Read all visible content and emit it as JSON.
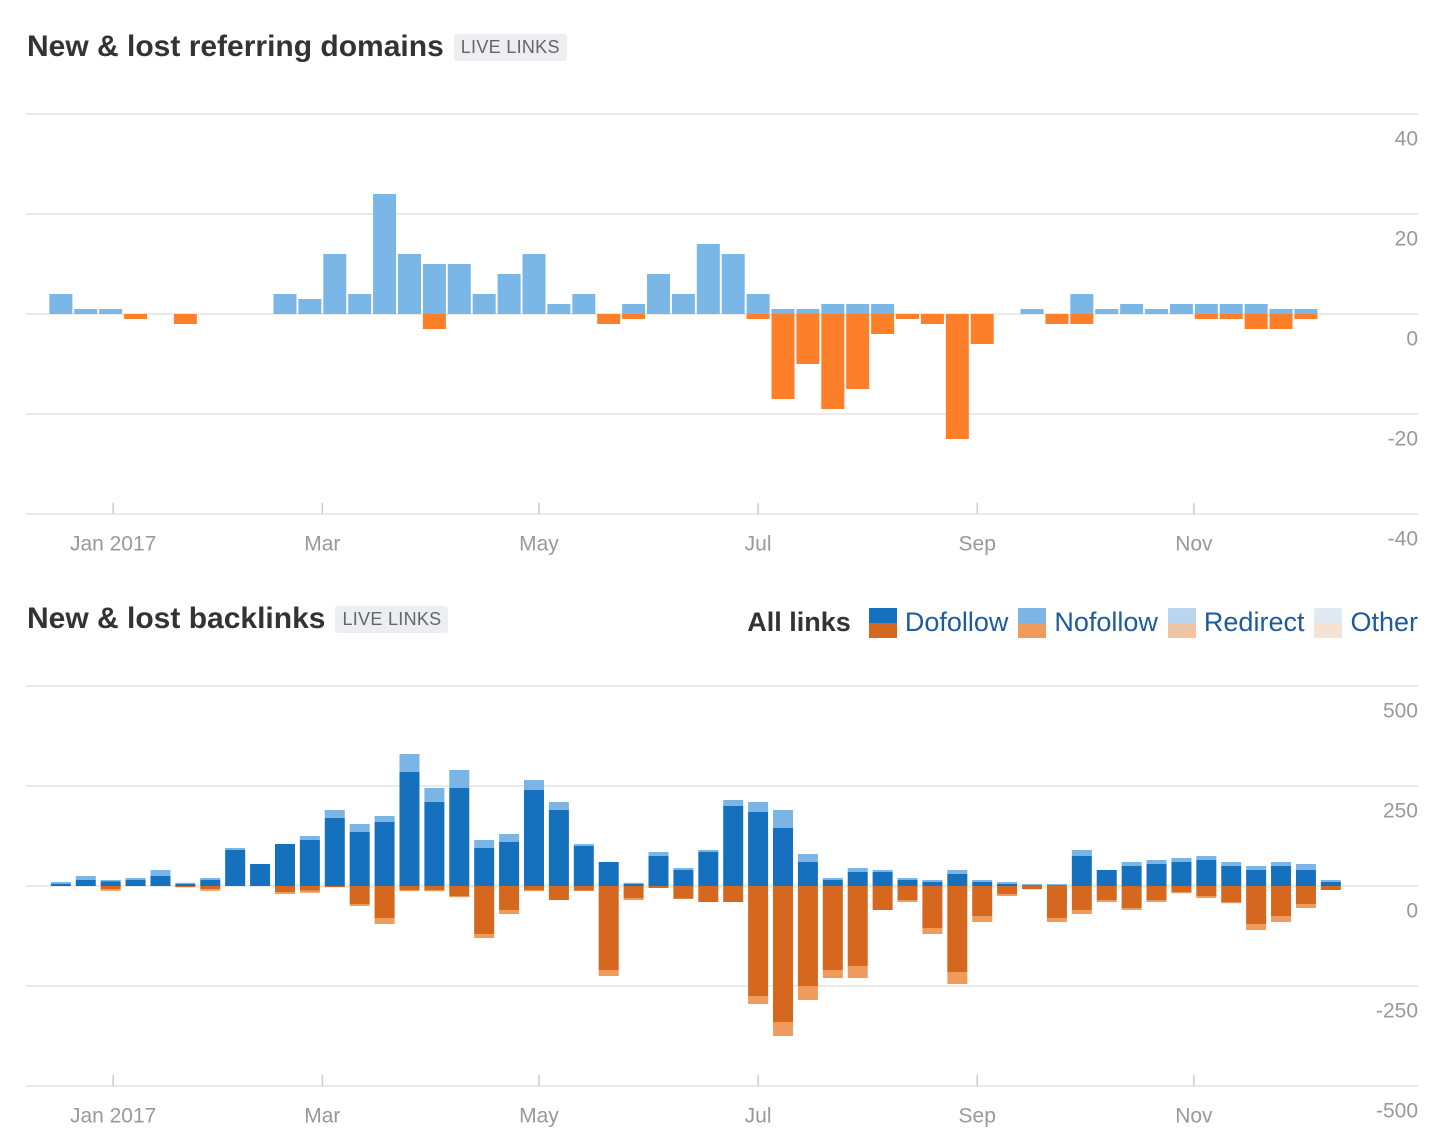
{
  "chart_data": [
    {
      "type": "bar",
      "stacked": true,
      "title": "New & lost referring domains",
      "badge": "LIVE LINKS",
      "x": [
        0,
        1,
        2,
        3,
        4,
        5,
        6,
        7,
        8,
        9,
        10,
        11,
        12,
        13,
        14,
        15,
        16,
        17,
        18,
        19,
        20,
        21,
        22,
        23,
        24,
        25,
        26,
        27,
        28,
        29,
        30,
        31,
        32,
        33,
        34,
        35,
        36,
        37,
        38,
        39,
        40,
        41,
        42,
        43,
        44,
        45,
        46,
        47,
        48,
        49,
        50,
        51
      ],
      "xlim": [
        -1.4,
        54.5
      ],
      "xticks": [
        {
          "value": 2.1,
          "label": "Jan 2017"
        },
        {
          "value": 10.5,
          "label": "Mar"
        },
        {
          "value": 19.2,
          "label": "May"
        },
        {
          "value": 28,
          "label": "Jul"
        },
        {
          "value": 36.8,
          "label": "Sep"
        },
        {
          "value": 45.5,
          "label": "Nov"
        }
      ],
      "ylim": [
        -40,
        40
      ],
      "yticks": [
        40,
        20,
        0,
        -20,
        -40
      ],
      "grid": true,
      "series": [
        {
          "color": "#7ab6e6",
          "values": [
            4,
            1,
            1,
            0,
            0,
            0,
            0,
            0,
            0,
            4,
            3,
            12,
            4,
            24,
            12,
            10,
            10,
            4,
            8,
            12,
            2,
            4,
            0,
            2,
            8,
            4,
            14,
            12,
            4,
            1,
            1,
            2,
            2,
            2,
            0,
            0,
            0,
            0,
            0,
            1,
            0,
            4,
            1,
            2,
            1,
            2,
            2,
            2,
            2,
            1,
            1,
            0
          ]
        },
        {
          "color": "#fd7f2a",
          "values": [
            0,
            0,
            0,
            -1,
            0,
            -2,
            0,
            0,
            0,
            0,
            0,
            0,
            0,
            0,
            0,
            -3,
            0,
            0,
            0,
            0,
            0,
            0,
            -2,
            -1,
            0,
            0,
            0,
            0,
            -1,
            -17,
            -10,
            -19,
            -15,
            -4,
            -1,
            -2,
            -25,
            -6,
            0,
            0,
            -2,
            -2,
            0,
            0,
            0,
            0,
            -1,
            -1,
            -3,
            -3,
            -1,
            0
          ]
        }
      ]
    },
    {
      "type": "bar",
      "stacked": true,
      "title": "New & lost backlinks",
      "badge": "LIVE LINKS",
      "legend_title": "All links",
      "x": [
        0,
        1,
        2,
        3,
        4,
        5,
        6,
        7,
        8,
        9,
        10,
        11,
        12,
        13,
        14,
        15,
        16,
        17,
        18,
        19,
        20,
        21,
        22,
        23,
        24,
        25,
        26,
        27,
        28,
        29,
        30,
        31,
        32,
        33,
        34,
        35,
        36,
        37,
        38,
        39,
        40,
        41,
        42,
        43,
        44,
        45,
        46,
        47,
        48,
        49,
        50,
        51
      ],
      "xlim": [
        -1.4,
        54.5
      ],
      "xticks": [
        {
          "value": 2.1,
          "label": "Jan 2017"
        },
        {
          "value": 10.5,
          "label": "Mar"
        },
        {
          "value": 19.2,
          "label": "May"
        },
        {
          "value": 28,
          "label": "Jul"
        },
        {
          "value": 36.8,
          "label": "Sep"
        },
        {
          "value": 45.5,
          "label": "Nov"
        }
      ],
      "ylim": [
        -500,
        500
      ],
      "yticks": [
        500,
        250,
        0,
        -250,
        -500
      ],
      "grid": true,
      "series": [
        {
          "name": "Dofollow",
          "color": "#1570be",
          "lost_color": "#d5671e",
          "values": [
            5,
            15,
            12,
            15,
            25,
            5,
            15,
            90,
            55,
            105,
            115,
            170,
            135,
            160,
            285,
            210,
            245,
            95,
            110,
            240,
            190,
            100,
            60,
            5,
            75,
            40,
            85,
            200,
            185,
            145,
            60,
            15,
            35,
            35,
            15,
            10,
            30,
            10,
            5,
            2,
            2,
            75,
            40,
            50,
            55,
            60,
            65,
            50,
            40,
            50,
            40,
            10
          ],
          "lost_values": [
            0,
            0,
            -8,
            0,
            0,
            -3,
            -8,
            0,
            0,
            -15,
            -12,
            -3,
            -45,
            -80,
            -10,
            -10,
            -25,
            -120,
            -60,
            -10,
            -35,
            -12,
            -210,
            -30,
            -5,
            -32,
            -40,
            -40,
            -275,
            -340,
            -250,
            -210,
            -200,
            -60,
            -35,
            -105,
            -215,
            -75,
            -20,
            -8,
            -80,
            -60,
            -35,
            -55,
            -35,
            -15,
            -25,
            -40,
            -95,
            -75,
            -45,
            -10
          ]
        },
        {
          "name": "Nofollow",
          "color": "#7ab5e6",
          "lost_color": "#ef9b5c",
          "values": [
            5,
            10,
            3,
            5,
            15,
            3,
            5,
            5,
            0,
            0,
            10,
            20,
            20,
            15,
            45,
            35,
            45,
            20,
            20,
            25,
            20,
            5,
            0,
            3,
            10,
            5,
            5,
            15,
            25,
            45,
            20,
            5,
            10,
            5,
            5,
            5,
            10,
            5,
            5,
            3,
            3,
            15,
            0,
            10,
            10,
            10,
            10,
            10,
            10,
            10,
            15,
            5
          ],
          "lost_values": [
            0,
            0,
            -4,
            0,
            0,
            0,
            -4,
            0,
            0,
            -5,
            -5,
            0,
            -5,
            -15,
            -3,
            -3,
            -3,
            -10,
            -10,
            -3,
            0,
            0,
            -15,
            -5,
            0,
            0,
            0,
            0,
            -20,
            -35,
            -35,
            -20,
            -30,
            0,
            -5,
            -15,
            -30,
            -15,
            -5,
            0,
            -10,
            -10,
            -5,
            -5,
            -5,
            -3,
            -5,
            -3,
            -15,
            -15,
            -10,
            0
          ]
        },
        {
          "name": "Redirect",
          "color": "#b9d6ef",
          "lost_color": "#efc3a3",
          "values": [
            0,
            0,
            0,
            0,
            0,
            0,
            0,
            0,
            0,
            0,
            0,
            0,
            0,
            0,
            0,
            0,
            0,
            0,
            0,
            0,
            0,
            0,
            0,
            0,
            0,
            0,
            0,
            0,
            0,
            0,
            0,
            0,
            0,
            0,
            0,
            0,
            0,
            0,
            0,
            0,
            0,
            0,
            0,
            0,
            0,
            0,
            0,
            0,
            0,
            0,
            0,
            0
          ],
          "lost_values": [
            0,
            0,
            0,
            0,
            0,
            0,
            0,
            0,
            0,
            0,
            0,
            0,
            0,
            0,
            0,
            0,
            0,
            0,
            0,
            0,
            0,
            0,
            0,
            0,
            0,
            0,
            0,
            0,
            0,
            0,
            0,
            0,
            0,
            0,
            0,
            0,
            0,
            0,
            0,
            0,
            0,
            0,
            0,
            0,
            0,
            0,
            0,
            0,
            0,
            0,
            0,
            0
          ]
        },
        {
          "name": "Other",
          "color": "#dfeaf3",
          "lost_color": "#f4e2d4",
          "values": [
            0,
            0,
            0,
            0,
            0,
            0,
            0,
            0,
            0,
            0,
            0,
            0,
            0,
            0,
            0,
            0,
            0,
            0,
            0,
            0,
            0,
            0,
            0,
            0,
            0,
            0,
            0,
            0,
            0,
            0,
            0,
            0,
            0,
            0,
            0,
            0,
            0,
            0,
            0,
            0,
            0,
            0,
            0,
            0,
            0,
            0,
            0,
            0,
            0,
            0,
            0,
            0
          ],
          "lost_values": [
            0,
            0,
            0,
            0,
            0,
            0,
            0,
            0,
            0,
            0,
            0,
            0,
            0,
            0,
            0,
            0,
            0,
            0,
            0,
            0,
            0,
            0,
            0,
            0,
            0,
            0,
            0,
            0,
            0,
            0,
            0,
            0,
            0,
            0,
            0,
            0,
            0,
            0,
            0,
            0,
            0,
            0,
            0,
            0,
            0,
            0,
            0,
            0,
            0,
            0,
            0,
            0
          ]
        }
      ]
    }
  ]
}
